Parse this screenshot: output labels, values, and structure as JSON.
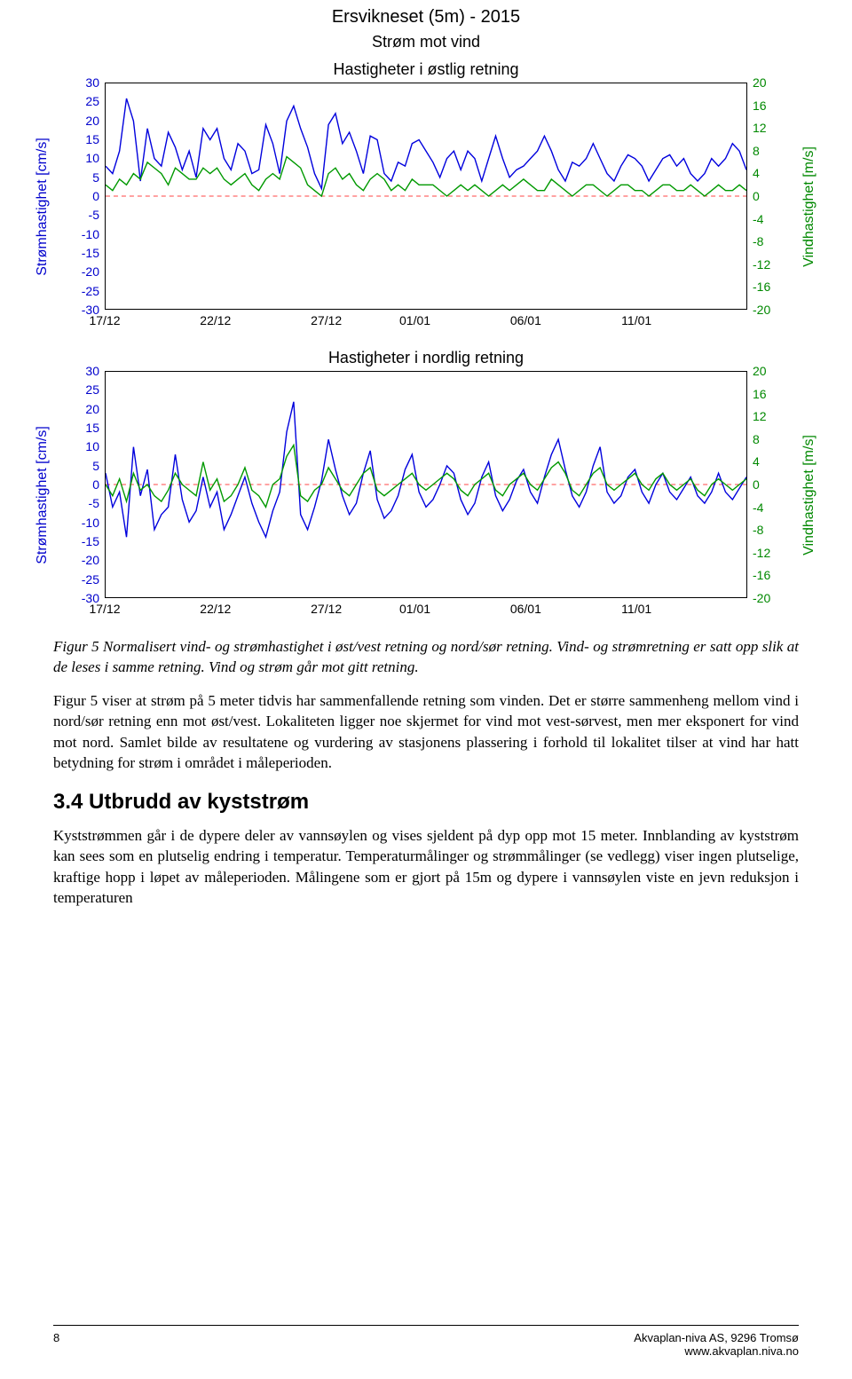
{
  "main_title": "Ersvikneset (5m) - 2015",
  "subtitle": "Strøm mot vind",
  "chart1_title": "Hastigheter i østlig retning",
  "chart2_title": "Hastigheter i nordlig retning",
  "y_left_label": "Strømhastighet [cm/s]",
  "y_right_label": "Vindhastighet [m/s]",
  "colors": {
    "left_axis": "#0000cc",
    "right_axis": "#008800",
    "series_strom": "#0000dd",
    "series_vind": "#009900",
    "zero_line": "#ff4444",
    "plot_border": "#000000"
  },
  "y_left": {
    "min": -30,
    "max": 30,
    "step": 5,
    "ticks": [
      30,
      25,
      20,
      15,
      10,
      5,
      0,
      -5,
      -10,
      -15,
      -20,
      -25,
      -30
    ]
  },
  "y_right": {
    "min": -20,
    "max": 20,
    "step": 4,
    "ticks": [
      20,
      16,
      12,
      8,
      4,
      0,
      -4,
      -8,
      -12,
      -16,
      -20
    ]
  },
  "x_ticks": [
    "17/12",
    "22/12",
    "27/12",
    "01/01",
    "06/01",
    "11/01"
  ],
  "x_range_days": 29,
  "chart1": {
    "strom": [
      8,
      6,
      12,
      26,
      20,
      4,
      18,
      10,
      8,
      17,
      13,
      7,
      12,
      5,
      18,
      15,
      18,
      10,
      7,
      14,
      12,
      6,
      7,
      19,
      14,
      6,
      20,
      24,
      18,
      13,
      6,
      2,
      19,
      22,
      14,
      17,
      12,
      6,
      16,
      15,
      6,
      4,
      9,
      8,
      14,
      15,
      12,
      9,
      5,
      10,
      12,
      7,
      12,
      10,
      4,
      10,
      16,
      10,
      5,
      7,
      8,
      10,
      12,
      16,
      12,
      7,
      4,
      9,
      8,
      10,
      14,
      10,
      6,
      4,
      8,
      11,
      10,
      8,
      4,
      7,
      10,
      11,
      8,
      10,
      6,
      4,
      6,
      10,
      8,
      10,
      14,
      12,
      7
    ],
    "vind": [
      2,
      1,
      3,
      2,
      4,
      3,
      6,
      5,
      4,
      2,
      5,
      4,
      3,
      3,
      5,
      4,
      5,
      3,
      2,
      3,
      4,
      2,
      1,
      3,
      4,
      3,
      7,
      6,
      5,
      2,
      1,
      0,
      4,
      5,
      3,
      4,
      2,
      1,
      3,
      4,
      3,
      1,
      2,
      1,
      3,
      2,
      2,
      2,
      1,
      0,
      1,
      2,
      1,
      2,
      1,
      0,
      1,
      2,
      1,
      2,
      3,
      2,
      1,
      1,
      3,
      2,
      1,
      0,
      1,
      2,
      2,
      1,
      0,
      1,
      2,
      2,
      1,
      1,
      0,
      1,
      2,
      2,
      1,
      1,
      2,
      1,
      0,
      1,
      2,
      1,
      1,
      2,
      1
    ]
  },
  "chart2": {
    "strom": [
      3,
      -6,
      -2,
      -14,
      10,
      -3,
      4,
      -12,
      -8,
      -6,
      8,
      -4,
      -10,
      -7,
      2,
      -6,
      -2,
      -12,
      -8,
      -3,
      2,
      -5,
      -10,
      -14,
      -7,
      -2,
      14,
      22,
      -8,
      -12,
      -6,
      1,
      12,
      4,
      -3,
      -8,
      -5,
      3,
      9,
      -4,
      -9,
      -7,
      -3,
      4,
      8,
      -2,
      -6,
      -4,
      0,
      5,
      3,
      -4,
      -8,
      -5,
      2,
      6,
      -3,
      -7,
      -4,
      1,
      4,
      -2,
      -5,
      2,
      8,
      12,
      4,
      -3,
      -6,
      -2,
      5,
      10,
      -2,
      -5,
      -3,
      2,
      4,
      -2,
      -5,
      0,
      3,
      -2,
      -4,
      -1,
      2,
      -3,
      -5,
      -2,
      3,
      -2,
      -4,
      -1,
      2
    ],
    "vind": [
      0,
      -2,
      1,
      -3,
      2,
      -1,
      0,
      -2,
      -3,
      -1,
      2,
      0,
      -1,
      -2,
      4,
      -1,
      1,
      -3,
      -2,
      0,
      3,
      -1,
      -2,
      -4,
      0,
      1,
      5,
      7,
      -2,
      -3,
      -1,
      0,
      3,
      1,
      -1,
      -2,
      0,
      2,
      3,
      -1,
      -2,
      -1,
      0,
      1,
      2,
      0,
      -1,
      0,
      1,
      2,
      1,
      -1,
      -2,
      0,
      1,
      2,
      -1,
      -2,
      0,
      1,
      2,
      0,
      -1,
      1,
      3,
      4,
      2,
      -1,
      -2,
      0,
      2,
      3,
      0,
      -1,
      0,
      1,
      2,
      0,
      -1,
      1,
      2,
      0,
      -1,
      0,
      1,
      -1,
      -2,
      0,
      1,
      0,
      -1,
      0,
      1
    ]
  },
  "caption": "Figur 5 Normalisert vind- og strømhastighet i øst/vest retning og nord/sør retning. Vind- og strømretning er satt opp slik at de leses i samme retning. Vind og strøm går mot gitt retning.",
  "body1": "Figur 5 viser at strøm på 5 meter tidvis har sammenfallende retning som vinden. Det er større sammenheng mellom vind i nord/sør retning enn mot øst/vest. Lokaliteten ligger noe skjermet for vind mot vest-sørvest, men mer eksponert for vind mot nord. Samlet bilde av resultatene og vurdering av stasjonens plassering i forhold til lokalitet tilser at vind har hatt betydning for strøm i området i måleperioden.",
  "heading": "3.4 Utbrudd av kyststrøm",
  "body2": "Kyststrømmen går i de dypere deler av vannsøylen og vises sjeldent på dyp opp mot 15 meter. Innblanding av kyststrøm kan sees som en plutselig endring i temperatur. Temperaturmålinger og strømmålinger (se vedlegg) viser ingen plutselige, kraftige hopp i løpet av måleperioden. Målingene som er gjort på 15m og dypere i vannsøylen viste en jevn reduksjon i temperaturen",
  "footer": {
    "page": "8",
    "org": "Akvaplan-niva AS, 9296 Tromsø",
    "url": "www.akvaplan.niva.no"
  }
}
